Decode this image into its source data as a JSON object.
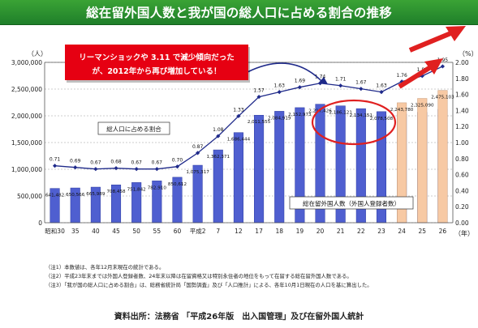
{
  "title": "総在留外国人数と我が国の総人口に占める割合の推移",
  "chart_data": {
    "type": "bar",
    "categories": [
      "昭和30",
      "35",
      "40",
      "45",
      "50",
      "55",
      "60",
      "平成2",
      "7",
      "12",
      "17",
      "18",
      "19",
      "20",
      "21",
      "22",
      "23",
      "24",
      "25",
      "26"
    ],
    "y_left_label": "（人）",
    "y_right_label": "（%）",
    "x_unit_label": "（年）",
    "y_left_range": [
      0,
      3000000
    ],
    "y_left_ticks": [
      "0",
      "500,000",
      "1,000,000",
      "1,500,000",
      "2,000,000",
      "2,500,000",
      "3,000,000"
    ],
    "y_right_range": [
      0,
      2.0
    ],
    "y_right_ticks": [
      "0.00",
      "0.20",
      "0.40",
      "0.60",
      "0.80",
      "1.00",
      "1.20",
      "1.40",
      "1.60",
      "1.80",
      "2.00"
    ],
    "bar_series": {
      "name": "総在留外国人数（外国人登録者数）",
      "values": [
        641482,
        650566,
        665989,
        708458,
        751842,
        782910,
        850612,
        1075317,
        1362371,
        1686444,
        2011555,
        2084919,
        2152973,
        2217426,
        2186121,
        2134151,
        2078508,
        2033656,
        2066445,
        2121831
      ],
      "value_labels": [
        "641,482",
        "650,566",
        "665,989",
        "708,458",
        "751,842",
        "782,910",
        "850,612",
        "1,075,317",
        "1,362,371",
        "1,686,444",
        "2,011,555",
        "2,084,919",
        "2,152,973",
        "2,217,426",
        "2,186,121",
        "2,134,151",
        "2,078,508",
        "",
        "",
        ""
      ]
    },
    "bar_series_2": {
      "name": "総在留外国人数",
      "values": [
        null,
        null,
        null,
        null,
        null,
        null,
        null,
        null,
        null,
        null,
        null,
        null,
        null,
        null,
        null,
        null,
        null,
        2243780,
        2325090,
        2475103
      ],
      "value_labels": [
        "",
        "",
        "",
        "",
        "",
        "",
        "",
        "",
        "",
        "",
        "",
        "",
        "",
        "",
        "",
        "",
        "",
        "2,243,780",
        "2,325,090",
        "2,475,103"
      ]
    },
    "line_series": {
      "name": "総人口に占める割合",
      "values": [
        0.71,
        0.69,
        0.67,
        0.68,
        0.67,
        0.67,
        0.7,
        0.87,
        1.08,
        1.33,
        1.57,
        1.63,
        1.69,
        1.74,
        1.71,
        1.67,
        1.63,
        1.76,
        1.83,
        1.95
      ]
    }
  },
  "legend_line_label": "総人口に占める割合",
  "legend_bar_label": "総在留外国人数（外国人登録者数）",
  "callout": {
    "line1": "リーマンショックや 3.11 で減少傾向だった",
    "line2": "が、2012年から再び増加している！"
  },
  "notes": [
    "（注1）本数値は、各年12月末現在の統計である。",
    "（注2）平成23年末までは外国人登録者数、24年末以降は在留資格又は特別永住者の地位をもって在留する総在留外国人数である。",
    "（注3）「我が国の総人口に占める割合」は、総務省統計局「国勢調査」及び「人口推計」による、各年10月1日現在の人口を基に算出した。"
  ],
  "source": "資料出所：法務省 「平成26年版　出入国管理」及び在留外国人統計",
  "colors": {
    "title_bg": "#2a8f2f",
    "bar_blue": "#4f5fd0",
    "bar_peach": "#f7c9a4",
    "line": "#1f2a8a",
    "callout_bg": "#e60012",
    "arrow_red": "#e02020"
  }
}
